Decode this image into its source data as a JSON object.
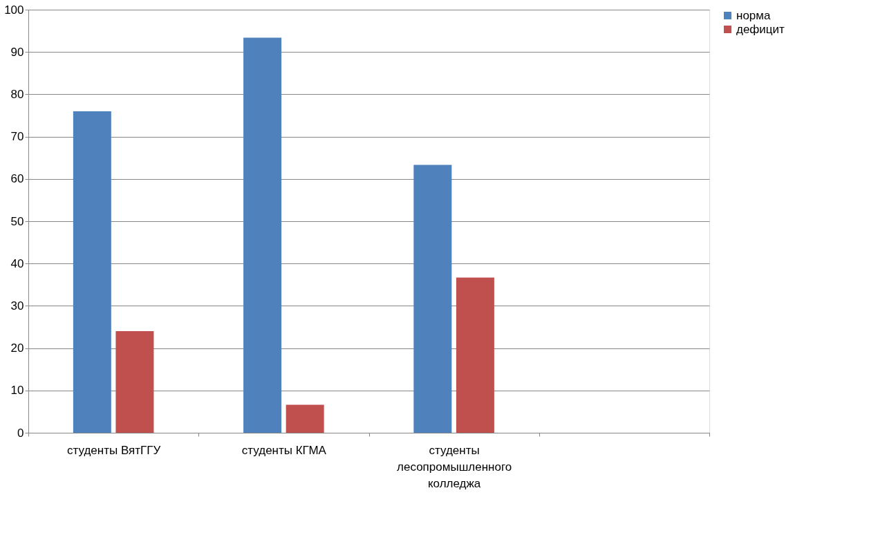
{
  "chart_data": {
    "type": "bar",
    "categories": [
      "студенты ВятГГУ",
      "студенты КГМА",
      "студенты лесопромышленного колледжа",
      null
    ],
    "series": [
      {
        "name": "норма",
        "color": "#4f81bd",
        "values": [
          76,
          93.4,
          63.3,
          null
        ]
      },
      {
        "name": "дефицит",
        "color": "#c0504d",
        "values": [
          24,
          6.6,
          36.7,
          null
        ]
      }
    ],
    "ylim": [
      0,
      100
    ],
    "yticks": [
      0,
      10,
      20,
      30,
      40,
      50,
      60,
      70,
      80,
      90,
      100
    ],
    "grid": "y",
    "legend": "right"
  }
}
